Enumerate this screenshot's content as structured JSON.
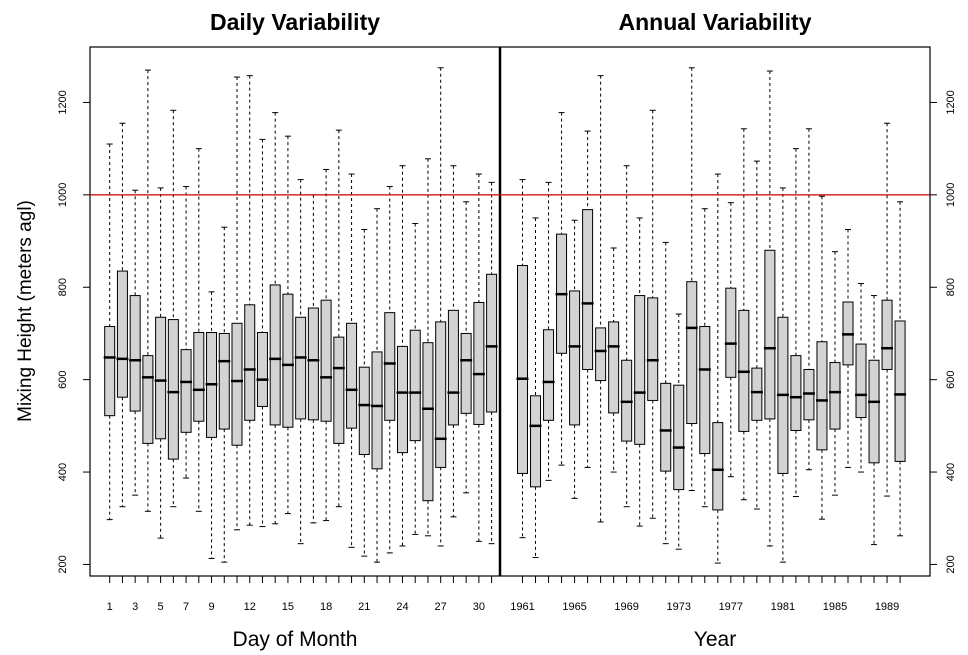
{
  "ylabel": "Mixing Height (meters agl)",
  "colors": {
    "box_fill": "#d3d3d3",
    "reference_line": "#cc0000",
    "ink": "#000000"
  },
  "reference_line": 1000,
  "y_ticks": [
    "200",
    "400",
    "600",
    "800",
    "1000",
    "1200"
  ],
  "chart_data": [
    {
      "type": "box",
      "title": "Daily Variability",
      "xlabel": "Day of Month",
      "ylabel": "Mixing Height (meters agl)",
      "ylim": [
        175,
        1320
      ],
      "categories": [
        "1",
        "2",
        "3",
        "4",
        "5",
        "6",
        "7",
        "8",
        "9",
        "10",
        "11",
        "12",
        "13",
        "14",
        "15",
        "16",
        "17",
        "18",
        "19",
        "20",
        "21",
        "22",
        "23",
        "24",
        "25",
        "26",
        "27",
        "28",
        "29",
        "30",
        "31"
      ],
      "x_tick_labels": [
        "1",
        "3",
        "5",
        "7",
        "9",
        "12",
        "15",
        "18",
        "21",
        "24",
        "27",
        "30"
      ],
      "boxes": [
        {
          "min": 297,
          "q1": 522,
          "median": 648,
          "q3": 715,
          "max": 1110
        },
        {
          "min": 325,
          "q1": 562,
          "median": 645,
          "q3": 835,
          "max": 1155
        },
        {
          "min": 350,
          "q1": 532,
          "median": 642,
          "q3": 782,
          "max": 1010
        },
        {
          "min": 315,
          "q1": 462,
          "median": 605,
          "q3": 652,
          "max": 1270
        },
        {
          "min": 257,
          "q1": 472,
          "median": 598,
          "q3": 735,
          "max": 1015
        },
        {
          "min": 325,
          "q1": 428,
          "median": 573,
          "q3": 730,
          "max": 1183
        },
        {
          "min": 387,
          "q1": 486,
          "median": 595,
          "q3": 665,
          "max": 1018
        },
        {
          "min": 315,
          "q1": 510,
          "median": 578,
          "q3": 702,
          "max": 1100
        },
        {
          "min": 213,
          "q1": 475,
          "median": 590,
          "q3": 702,
          "max": 790
        },
        {
          "min": 205,
          "q1": 493,
          "median": 640,
          "q3": 700,
          "max": 930
        },
        {
          "min": 275,
          "q1": 458,
          "median": 597,
          "q3": 722,
          "max": 1255
        },
        {
          "min": 285,
          "q1": 512,
          "median": 622,
          "q3": 762,
          "max": 1258
        },
        {
          "min": 282,
          "q1": 542,
          "median": 600,
          "q3": 702,
          "max": 1120
        },
        {
          "min": 288,
          "q1": 502,
          "median": 645,
          "q3": 805,
          "max": 1178
        },
        {
          "min": 310,
          "q1": 497,
          "median": 632,
          "q3": 785,
          "max": 1127
        },
        {
          "min": 245,
          "q1": 515,
          "median": 648,
          "q3": 735,
          "max": 1033
        },
        {
          "min": 290,
          "q1": 513,
          "median": 642,
          "q3": 755,
          "max": 1000
        },
        {
          "min": 295,
          "q1": 510,
          "median": 605,
          "q3": 772,
          "max": 1055
        },
        {
          "min": 325,
          "q1": 462,
          "median": 625,
          "q3": 692,
          "max": 1140
        },
        {
          "min": 237,
          "q1": 495,
          "median": 578,
          "q3": 722,
          "max": 1045
        },
        {
          "min": 218,
          "q1": 438,
          "median": 545,
          "q3": 627,
          "max": 925
        },
        {
          "min": 205,
          "q1": 407,
          "median": 543,
          "q3": 660,
          "max": 970
        },
        {
          "min": 225,
          "q1": 512,
          "median": 635,
          "q3": 745,
          "max": 1018
        },
        {
          "min": 240,
          "q1": 442,
          "median": 572,
          "q3": 672,
          "max": 1063
        },
        {
          "min": 265,
          "q1": 468,
          "median": 572,
          "q3": 707,
          "max": 938
        },
        {
          "min": 262,
          "q1": 338,
          "median": 537,
          "q3": 680,
          "max": 1078
        },
        {
          "min": 240,
          "q1": 410,
          "median": 472,
          "q3": 725,
          "max": 1275
        },
        {
          "min": 303,
          "q1": 502,
          "median": 572,
          "q3": 750,
          "max": 1063
        },
        {
          "min": 355,
          "q1": 527,
          "median": 642,
          "q3": 700,
          "max": 985
        },
        {
          "min": 250,
          "q1": 503,
          "median": 612,
          "q3": 767,
          "max": 1045
        },
        {
          "min": 245,
          "q1": 530,
          "median": 672,
          "q3": 828,
          "max": 1027
        }
      ]
    },
    {
      "type": "box",
      "title": "Annual Variability",
      "xlabel": "Year",
      "ylim": [
        175,
        1320
      ],
      "categories": [
        "1961",
        "1962",
        "1963",
        "1964",
        "1965",
        "1966",
        "1967",
        "1968",
        "1969",
        "1970",
        "1971",
        "1972",
        "1973",
        "1974",
        "1975",
        "1976",
        "1977",
        "1978",
        "1979",
        "1980",
        "1981",
        "1982",
        "1983",
        "1984",
        "1985",
        "1986",
        "1987",
        "1988",
        "1989",
        "1990"
      ],
      "x_tick_labels": [
        "1961",
        "1965",
        "1969",
        "1973",
        "1977",
        "1981",
        "1985",
        "1989"
      ],
      "boxes": [
        {
          "min": 258,
          "q1": 397,
          "median": 602,
          "q3": 847,
          "max": 1033
        },
        {
          "min": 215,
          "q1": 368,
          "median": 500,
          "q3": 565,
          "max": 950
        },
        {
          "min": 382,
          "q1": 512,
          "median": 595,
          "q3": 708,
          "max": 1027
        },
        {
          "min": 415,
          "q1": 657,
          "median": 785,
          "q3": 915,
          "max": 1178
        },
        {
          "min": 343,
          "q1": 502,
          "median": 672,
          "q3": 792,
          "max": 945
        },
        {
          "min": 410,
          "q1": 622,
          "median": 765,
          "q3": 968,
          "max": 1138
        },
        {
          "min": 292,
          "q1": 598,
          "median": 662,
          "q3": 712,
          "max": 1258
        },
        {
          "min": 400,
          "q1": 528,
          "median": 672,
          "q3": 725,
          "max": 885
        },
        {
          "min": 325,
          "q1": 467,
          "median": 552,
          "q3": 642,
          "max": 1063
        },
        {
          "min": 283,
          "q1": 460,
          "median": 572,
          "q3": 782,
          "max": 950
        },
        {
          "min": 300,
          "q1": 555,
          "median": 642,
          "q3": 777,
          "max": 1183
        },
        {
          "min": 245,
          "q1": 402,
          "median": 490,
          "q3": 592,
          "max": 897
        },
        {
          "min": 233,
          "q1": 362,
          "median": 453,
          "q3": 588,
          "max": 742
        },
        {
          "min": 360,
          "q1": 505,
          "median": 712,
          "q3": 812,
          "max": 1275
        },
        {
          "min": 325,
          "q1": 440,
          "median": 622,
          "q3": 715,
          "max": 970
        },
        {
          "min": 203,
          "q1": 318,
          "median": 405,
          "q3": 507,
          "max": 1045
        },
        {
          "min": 390,
          "q1": 605,
          "median": 678,
          "q3": 798,
          "max": 983
        },
        {
          "min": 340,
          "q1": 488,
          "median": 617,
          "q3": 750,
          "max": 1143
        },
        {
          "min": 320,
          "q1": 512,
          "median": 573,
          "q3": 625,
          "max": 1073
        },
        {
          "min": 240,
          "q1": 515,
          "median": 668,
          "q3": 880,
          "max": 1268
        },
        {
          "min": 205,
          "q1": 397,
          "median": 567,
          "q3": 735,
          "max": 1015
        },
        {
          "min": 347,
          "q1": 490,
          "median": 562,
          "q3": 652,
          "max": 1100
        },
        {
          "min": 405,
          "q1": 513,
          "median": 570,
          "q3": 622,
          "max": 1143
        },
        {
          "min": 298,
          "q1": 448,
          "median": 555,
          "q3": 682,
          "max": 997
        },
        {
          "min": 350,
          "q1": 493,
          "median": 573,
          "q3": 637,
          "max": 877
        },
        {
          "min": 410,
          "q1": 632,
          "median": 698,
          "q3": 768,
          "max": 925
        },
        {
          "min": 400,
          "q1": 518,
          "median": 567,
          "q3": 677,
          "max": 808
        },
        {
          "min": 243,
          "q1": 420,
          "median": 552,
          "q3": 642,
          "max": 782
        },
        {
          "min": 348,
          "q1": 622,
          "median": 668,
          "q3": 772,
          "max": 1155
        },
        {
          "min": 262,
          "q1": 423,
          "median": 568,
          "q3": 727,
          "max": 985
        }
      ]
    }
  ]
}
